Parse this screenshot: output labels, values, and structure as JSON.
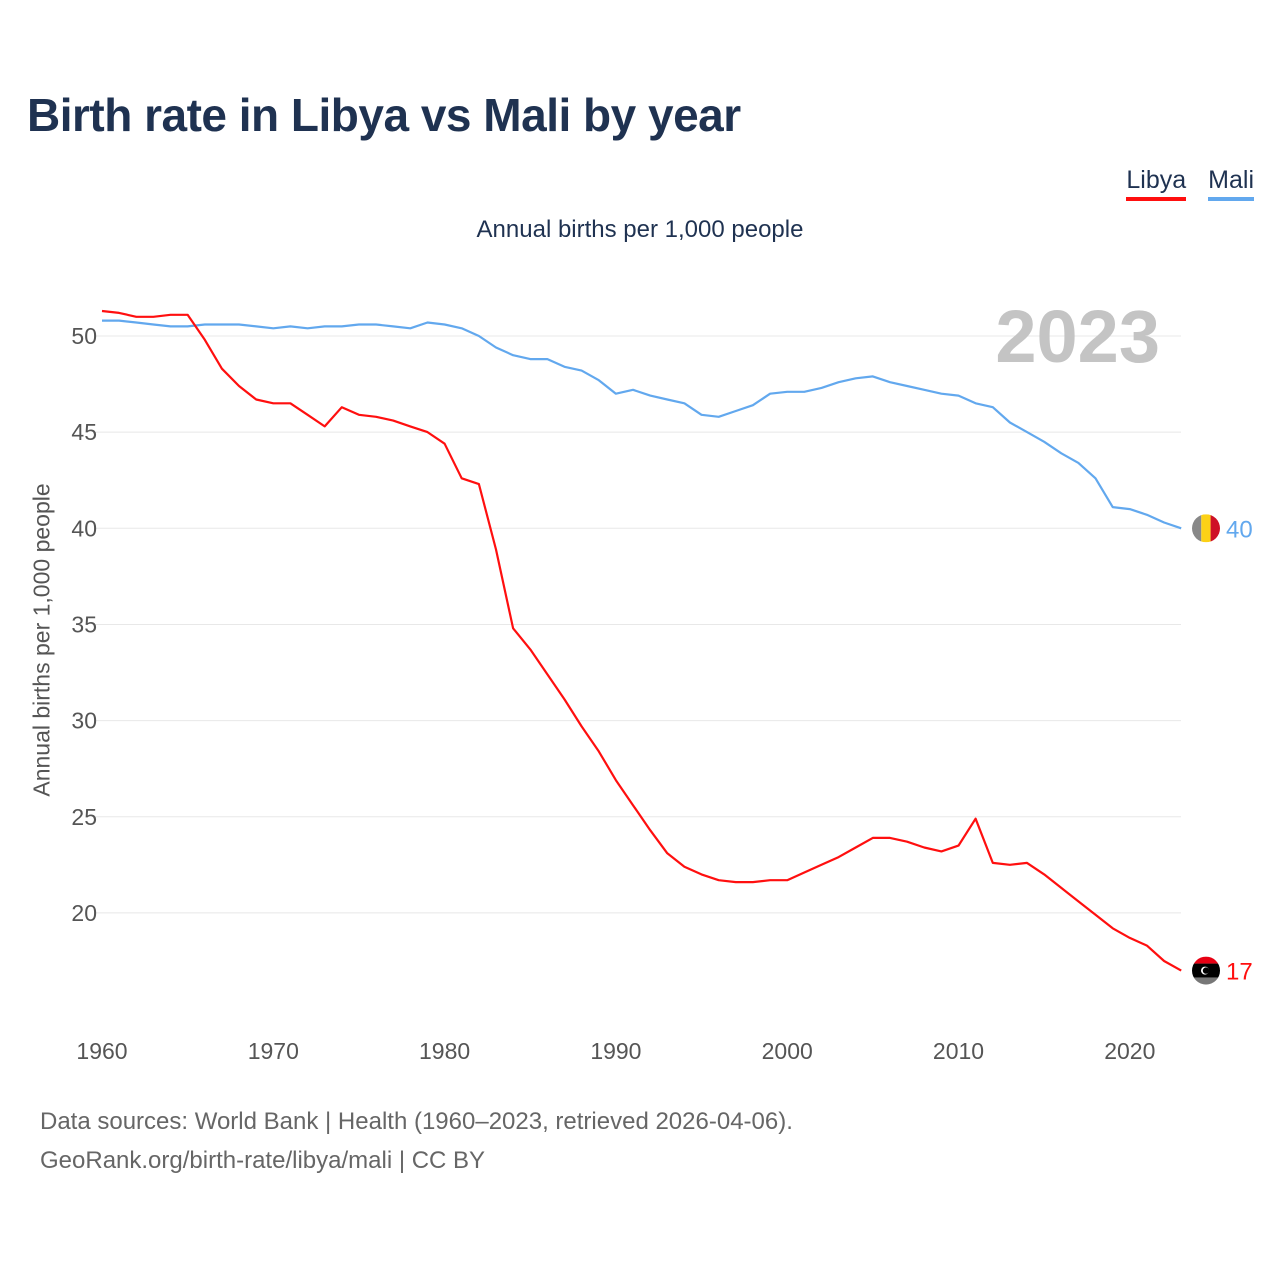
{
  "title": "Birth rate in Libya vs Mali by year",
  "legend": [
    {
      "label": "Libya",
      "color": "#ff0f0f"
    },
    {
      "label": "Mali",
      "color": "#62a8ee"
    }
  ],
  "subtitle": "Annual births per 1,000 people",
  "footer": {
    "source": "Data sources: World Bank | Health (1960–2023, retrieved 2026-04-06).",
    "link": "GeoRank.org/birth-rate/libya/mali | CC BY"
  },
  "chart_data": {
    "type": "line",
    "title": "Birth rate in Libya vs Mali by year",
    "ylabel": "Annual births per 1,000 people",
    "xlabel": "",
    "year_label": "2023",
    "xlim": [
      1960,
      2023
    ],
    "ylim": [
      15,
      53
    ],
    "xticks": [
      1960,
      1970,
      1980,
      1990,
      2000,
      2010,
      2020
    ],
    "yticks": [
      20,
      25,
      30,
      35,
      40,
      45,
      50
    ],
    "grid": true,
    "legend_position": "top-right",
    "x_start": 1960,
    "series": [
      {
        "name": "Libya",
        "color": "#ff0f0f",
        "end_label": "17",
        "flag": "libya-flag",
        "values": [
          51.3,
          51.2,
          51.0,
          51.0,
          51.1,
          51.1,
          49.8,
          48.3,
          47.4,
          46.7,
          46.5,
          46.5,
          45.9,
          45.3,
          46.3,
          45.9,
          45.8,
          45.6,
          45.3,
          45.0,
          44.4,
          42.6,
          42.3,
          38.9,
          34.8,
          33.7,
          32.4,
          31.1,
          29.7,
          28.4,
          26.9,
          25.6,
          24.3,
          23.1,
          22.4,
          22.0,
          21.7,
          21.6,
          21.6,
          21.7,
          21.7,
          22.1,
          22.5,
          22.9,
          23.4,
          23.9,
          23.9,
          23.7,
          23.4,
          23.2,
          23.5,
          24.9,
          22.6,
          22.5,
          22.6,
          22.0,
          21.3,
          20.6,
          19.9,
          19.2,
          18.7,
          18.3,
          17.5,
          17.0
        ]
      },
      {
        "name": "Mali",
        "color": "#62a8ee",
        "end_label": "40",
        "flag": "mali-flag",
        "values": [
          50.8,
          50.8,
          50.7,
          50.6,
          50.5,
          50.5,
          50.6,
          50.6,
          50.6,
          50.5,
          50.4,
          50.5,
          50.4,
          50.5,
          50.5,
          50.6,
          50.6,
          50.5,
          50.4,
          50.7,
          50.6,
          50.4,
          50.0,
          49.4,
          49.0,
          48.8,
          48.8,
          48.4,
          48.2,
          47.7,
          47.0,
          47.2,
          46.9,
          46.7,
          46.5,
          45.9,
          45.8,
          46.1,
          46.4,
          47.0,
          47.1,
          47.1,
          47.3,
          47.6,
          47.8,
          47.9,
          47.6,
          47.4,
          47.2,
          47.0,
          46.9,
          46.5,
          46.3,
          45.5,
          45.0,
          44.5,
          43.9,
          43.4,
          42.6,
          41.1,
          41.0,
          40.7,
          40.3,
          40.0
        ]
      }
    ]
  }
}
